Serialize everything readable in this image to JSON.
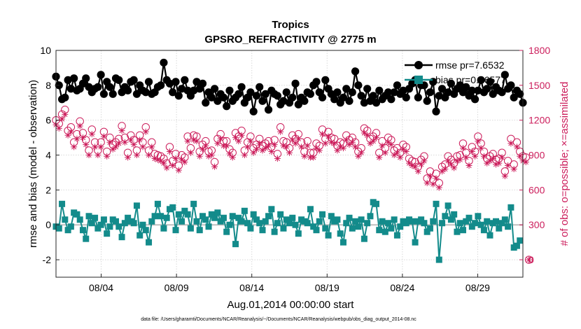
{
  "chart_data": {
    "type": "line",
    "title": "Tropics",
    "subtitle": "GPSRO_REFRACTIVITY @ 2775 m",
    "xlabel": "Aug.01,2014 00:00:00 start",
    "ylabel": "rmse and bias (model - observation)",
    "y2label": "# of obs: o=possible; ×=assimilated",
    "footnote": "data file: /Users/gharamti/Documents/NCAR/Reanalysis/~/Documents/NCAR/Reanalysis/webpub/obs_diag_output_2014-08.nc",
    "xlim": [
      1,
      32
    ],
    "ylim": [
      -3,
      10
    ],
    "y2lim": [
      -150,
      1800
    ],
    "x_ticks": [
      4,
      9,
      14,
      19,
      24,
      29
    ],
    "x_tick_labels": [
      "08/04",
      "08/09",
      "08/14",
      "08/19",
      "08/24",
      "08/29"
    ],
    "y_ticks": [
      -2,
      0,
      2,
      4,
      6,
      8,
      10
    ],
    "y_tick_labels": [
      "-2",
      "0",
      "2",
      "4",
      "6",
      "8",
      "10"
    ],
    "y2_ticks": [
      0,
      300,
      600,
      900,
      1200,
      1500,
      1800
    ],
    "y2_tick_labels": [
      "0",
      "300",
      "600",
      "900",
      "1200",
      "1500",
      "1800"
    ],
    "zero_line": 0,
    "legend": {
      "location": "top-right"
    },
    "series": [
      {
        "name": "rmse pr=7.6532",
        "axis": "left",
        "color": "#000000",
        "values": [
          8.5,
          8.0,
          7.2,
          7.3,
          8.3,
          7.8,
          8.4,
          7.7,
          7.8,
          8.1,
          8.4,
          7.9,
          7.6,
          7.8,
          7.9,
          8.6,
          7.5,
          8.2,
          7.9,
          7.5,
          8.4,
          8.3,
          7.6,
          7.9,
          7.7,
          8.2,
          8.3,
          7.5,
          8.0,
          7.7,
          7.6,
          8.2,
          7.5,
          7.6,
          7.9,
          8.0,
          9.3,
          8.3,
          8.1,
          7.6,
          8.2,
          7.4,
          7.8,
          8.3,
          7.7,
          7.4,
          7.7,
          8.2,
          7.8,
          8.1,
          7.0,
          7.6,
          7.3,
          7.8,
          7.1,
          7.5,
          7.3,
          6.8,
          7.7,
          7.1,
          7.3,
          7.5,
          7.9,
          7.0,
          7.3,
          7.6,
          6.5,
          7.4,
          7.9,
          7.1,
          7.5,
          6.6,
          7.7,
          7.5,
          7.4,
          6.9,
          7.1,
          7.6,
          7.0,
          7.3,
          8.1,
          6.9,
          7.3,
          7.1,
          7.6,
          7.5,
          8.0,
          8.2,
          7.6,
          7.3,
          8.3,
          7.8,
          7.5,
          7.2,
          7.6,
          7.0,
          7.3,
          7.8,
          7.1,
          7.6,
          8.8,
          8.0,
          7.4,
          7.0,
          7.8,
          7.1,
          7.4,
          7.0,
          7.7,
          7.2,
          7.4,
          7.6,
          7.2,
          7.6,
          8.0,
          7.5,
          7.7,
          7.3,
          7.8,
          8.1,
          8.3,
          7.3,
          8.0,
          8.0,
          7.1,
          7.6,
          8.2,
          6.5,
          7.4,
          7.8,
          7.3,
          7.6,
          8.1,
          7.5,
          7.8,
          8.0,
          7.6,
          7.9,
          7.4,
          7.7,
          7.2,
          7.7,
          8.3,
          7.6,
          7.8,
          8.2,
          7.5,
          7.9,
          7.7,
          7.6,
          8.6,
          7.8,
          8.0,
          7.3,
          7.7,
          7.5,
          7.0
        ]
      },
      {
        "name": "bias pr=0.06577",
        "axis": "left",
        "color": "#138b8b",
        "values": [
          -0.1,
          -0.2,
          1.2,
          0.3,
          -0.3,
          -0.1,
          0.7,
          0.6,
          0.3,
          -0.3,
          -0.8,
          0.5,
          0.1,
          0.4,
          -0.2,
          0.0,
          0.3,
          -0.5,
          -0.1,
          0.3,
          0.2,
          -0.1,
          -0.7,
          0.1,
          0.4,
          0.2,
          0.1,
          1.1,
          -0.6,
          0.0,
          -0.3,
          -1.0,
          0.2,
          0.5,
          1.2,
          0.5,
          -0.2,
          0.4,
          0.9,
          1.0,
          -0.3,
          0.6,
          0.2,
          0.8,
          0.6,
          -0.2,
          1.2,
          0.2,
          -0.3,
          0.5,
          0.3,
          -0.1,
          0.6,
          0.4,
          0.7,
          0.2,
          0.4,
          -0.4,
          0.0,
          0.5,
          -1.1,
          0.4,
          0.2,
          0.8,
          0.1,
          -0.2,
          0.6,
          0.3,
          0.1,
          -0.3,
          0.2,
          0.5,
          0.9,
          -0.4,
          0.1,
          0.6,
          -0.2,
          0.3,
          0.1,
          0.4,
          0.0,
          -0.5,
          0.3,
          0.2,
          0.1,
          0.9,
          -0.1,
          -0.3,
          0.2,
          0.6,
          -0.2,
          -0.6,
          0.5,
          0.2,
          0.3,
          -0.5,
          -1.0,
          0.1,
          0.4,
          -0.2,
          0.2,
          -0.1,
          0.3,
          -0.8,
          0.1,
          0.5,
          1.3,
          1.2,
          -0.3,
          0.2,
          -0.4,
          0.1,
          -0.2,
          0.3,
          -0.6,
          -0.1,
          0.2,
          0.1,
          0.3,
          0.2,
          -1.0,
          0.2,
          0.3,
          0.1,
          -0.4,
          -0.2,
          0.2,
          1.2,
          -2.0,
          0.1,
          0.5,
          1.1,
          0.3,
          0.6,
          -0.4,
          0.1,
          -0.3,
          0.2,
          0.4,
          -0.1,
          0.1,
          0.5,
          0.0,
          -0.3,
          0.2,
          -0.6,
          0.1,
          0.2,
          -0.2,
          0.1,
          0.3,
          -0.1,
          1.0,
          -1.3,
          -1.2,
          -0.9
        ]
      },
      {
        "name": "possible obs",
        "axis": "right",
        "color": "#cc1e5c",
        "marker": "circle",
        "values": [
          1200,
          1170,
          1250,
          1290,
          1110,
          1140,
          1010,
          1080,
          1190,
          1090,
          1030,
          940,
          1120,
          1010,
          940,
          1010,
          1100,
          930,
          1050,
          990,
          1010,
          1040,
          1150,
          1050,
          920,
          1070,
          1030,
          940,
          1070,
          1010,
          1140,
          940,
          1010,
          910,
          900,
          890,
          870,
          830,
          970,
          850,
          910,
          810,
          900,
          880,
          1060,
          960,
          1070,
          1060,
          930,
          990,
          1020,
          930,
          940,
          840,
          1040,
          1080,
          1020,
          1020,
          950,
          920,
          1090,
          1060,
          1110,
          940,
          1010,
          1060,
          960,
          990,
          1040,
          980,
          1000,
          1020,
          970,
          1030,
          910,
          1140,
          1020,
          1010,
          960,
          1070,
          1040,
          1080,
          1010,
          930,
          1020,
          920,
          920,
          1000,
          980,
          1120,
          1040,
          1100,
          1050,
          1040,
          980,
          1010,
          1000,
          1070,
          1030,
          1050,
          1010,
          930,
          960,
          1130,
          1110,
          1040,
          1060,
          1090,
          920,
          1020,
          960,
          1050,
          1030,
          940,
          960,
          920,
          990,
          970,
          870,
          850,
          840,
          800,
          860,
          890,
          700,
          760,
          690,
          740,
          660,
          800,
          820,
          890,
          860,
          830,
          890,
          900,
          1000,
          920,
          850,
          970,
          930,
          1060,
          1000,
          930,
          870,
          890,
          910,
          860,
          870,
          920,
          760,
          850,
          1040,
          820,
          1010,
          930,
          890,
          880,
          0
        ]
      },
      {
        "name": "assimilated obs",
        "axis": "right",
        "color": "#cc1e5c",
        "marker": "x",
        "values": [
          1160,
          1130,
          1210,
          1250,
          1070,
          1100,
          970,
          1040,
          1150,
          1050,
          990,
          900,
          1080,
          970,
          900,
          970,
          1060,
          890,
          1010,
          950,
          970,
          1000,
          1110,
          1010,
          880,
          1030,
          990,
          900,
          1030,
          970,
          1100,
          900,
          970,
          870,
          860,
          850,
          830,
          790,
          930,
          810,
          870,
          770,
          860,
          840,
          1020,
          920,
          1030,
          1020,
          890,
          950,
          980,
          890,
          900,
          800,
          1000,
          1040,
          980,
          980,
          910,
          880,
          1050,
          1020,
          1070,
          900,
          970,
          1020,
          920,
          950,
          1000,
          940,
          960,
          980,
          930,
          990,
          870,
          1100,
          980,
          970,
          920,
          1030,
          1000,
          1040,
          970,
          890,
          980,
          880,
          880,
          960,
          940,
          1080,
          1000,
          1060,
          1010,
          1000,
          940,
          970,
          960,
          1030,
          990,
          1010,
          970,
          890,
          920,
          1090,
          1070,
          1000,
          1020,
          1050,
          880,
          980,
          920,
          1010,
          990,
          900,
          920,
          880,
          950,
          930,
          830,
          810,
          800,
          760,
          820,
          850,
          660,
          720,
          650,
          700,
          620,
          760,
          780,
          850,
          820,
          790,
          850,
          860,
          960,
          880,
          810,
          930,
          890,
          1020,
          960,
          890,
          830,
          850,
          870,
          820,
          830,
          880,
          720,
          810,
          1000,
          780,
          970,
          890,
          850,
          840,
          0
        ]
      }
    ]
  }
}
